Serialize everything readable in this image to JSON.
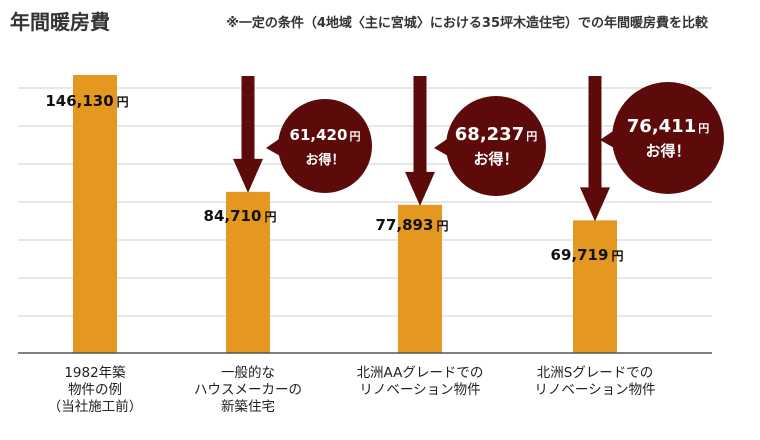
{
  "chart_data": {
    "type": "bar",
    "title": "年間暖房費",
    "subtitle": "※一定の条件（4地域〈主に宮城〉における35坪木造住宅）での年間暖房費を比較",
    "unit": "円",
    "categories": [
      [
        "1982年築",
        "物件の例",
        "（当社施工前）"
      ],
      [
        "一般的な",
        "ハウスメーカーの",
        "新築住宅"
      ],
      [
        "北洲AAグレードでの",
        "リノベーション物件"
      ],
      [
        "北洲Sグレードでの",
        "リノベーション物件"
      ]
    ],
    "values": [
      146130,
      84710,
      77893,
      69719
    ],
    "value_labels": [
      "146,130",
      "84,710",
      "77,893",
      "69,719"
    ],
    "ylim": [
      0,
      146130
    ],
    "grid": true,
    "savings": [
      {
        "amount": "61,420",
        "unit": "円",
        "text": "お得！"
      },
      {
        "amount": "68,237",
        "unit": "円",
        "text": "お得！"
      },
      {
        "amount": "76,411",
        "unit": "円",
        "text": "お得！"
      }
    ],
    "colors": {
      "bar": "#E4981F",
      "arrow": "#5C0A0A",
      "grid": "#d0d0d0",
      "axis": "#555555"
    }
  }
}
